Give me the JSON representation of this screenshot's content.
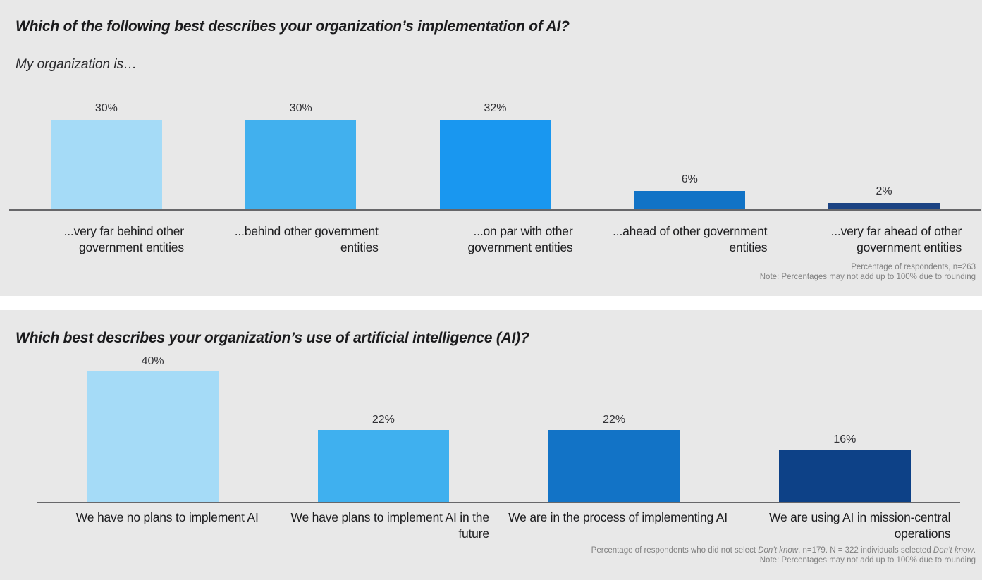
{
  "page": {
    "background": "#e8e8e8",
    "divider_color": "#ffffff",
    "axis_color": "#67676a",
    "footnote_color": "#7f7f7f",
    "title_color": "#1b1b1d"
  },
  "chart_data": [
    {
      "type": "bar",
      "title": "Which of the following best describes your organization’s implementation of AI?",
      "subtitle": "My organization is…",
      "categories": [
        "...very far behind other government entities",
        "...behind other government entities",
        "...on par with other government entities",
        "...ahead of other government entities",
        "...very far ahead of other government entities"
      ],
      "category_lines": [
        [
          "...very far behind other",
          "government entities"
        ],
        [
          "...behind other government",
          "entities"
        ],
        [
          "...on par with other",
          "government entities"
        ],
        [
          "...ahead of other government",
          "entities"
        ],
        [
          "...very far ahead of other",
          "government entities"
        ]
      ],
      "values": [
        30,
        30,
        32,
        6,
        2
      ],
      "value_labels": [
        "30%",
        "30%",
        "32%",
        "6%",
        "2%"
      ],
      "bar_colors": [
        "#a5dbf7",
        "#41b0ee",
        "#1997f0",
        "#1173c6",
        "#1b4383"
      ],
      "xlabel": "",
      "ylabel": "Percentage of respondents",
      "ylim": [
        0,
        35
      ],
      "grid": false,
      "legend": null,
      "footnotes": [
        [
          {
            "text": "Percentage of respondents, n=263"
          }
        ],
        [
          {
            "text": "Note: Percentages may not add up to 100% due to rounding"
          }
        ]
      ]
    },
    {
      "type": "bar",
      "title": "Which best describes your organization’s use of artificial intelligence (AI)?",
      "subtitle": "",
      "categories": [
        "We have no plans to implement AI",
        "We have plans to implement AI in the future",
        "We are in the process of implementing AI",
        "We are using AI in mission-central operations"
      ],
      "category_lines": [
        [
          "We have no plans to implement AI"
        ],
        [
          "We have plans to implement AI in the",
          "future"
        ],
        [
          "We are in the process of implementing AI"
        ],
        [
          "We are using AI in mission-central",
          "operations"
        ]
      ],
      "values": [
        40,
        22,
        22,
        16
      ],
      "value_labels": [
        "40%",
        "22%",
        "22%",
        "16%"
      ],
      "bar_colors": [
        "#a5dbf7",
        "#3fb0ef",
        "#1273c6",
        "#0d4187"
      ],
      "xlabel": "",
      "ylabel": "Percentage of respondents who did not select Don’t know",
      "ylim": [
        0,
        45
      ],
      "grid": false,
      "legend": null,
      "footnotes": [
        [
          {
            "text": "Percentage of respondents who did not select "
          },
          {
            "text": "Don’t know",
            "italic": true
          },
          {
            "text": ", n=179. N = 322 individuals selected "
          },
          {
            "text": "Don’t know",
            "italic": true
          },
          {
            "text": "."
          }
        ],
        [
          {
            "text": "Note: Percentages may not add up to 100% due to rounding"
          }
        ]
      ]
    }
  ]
}
